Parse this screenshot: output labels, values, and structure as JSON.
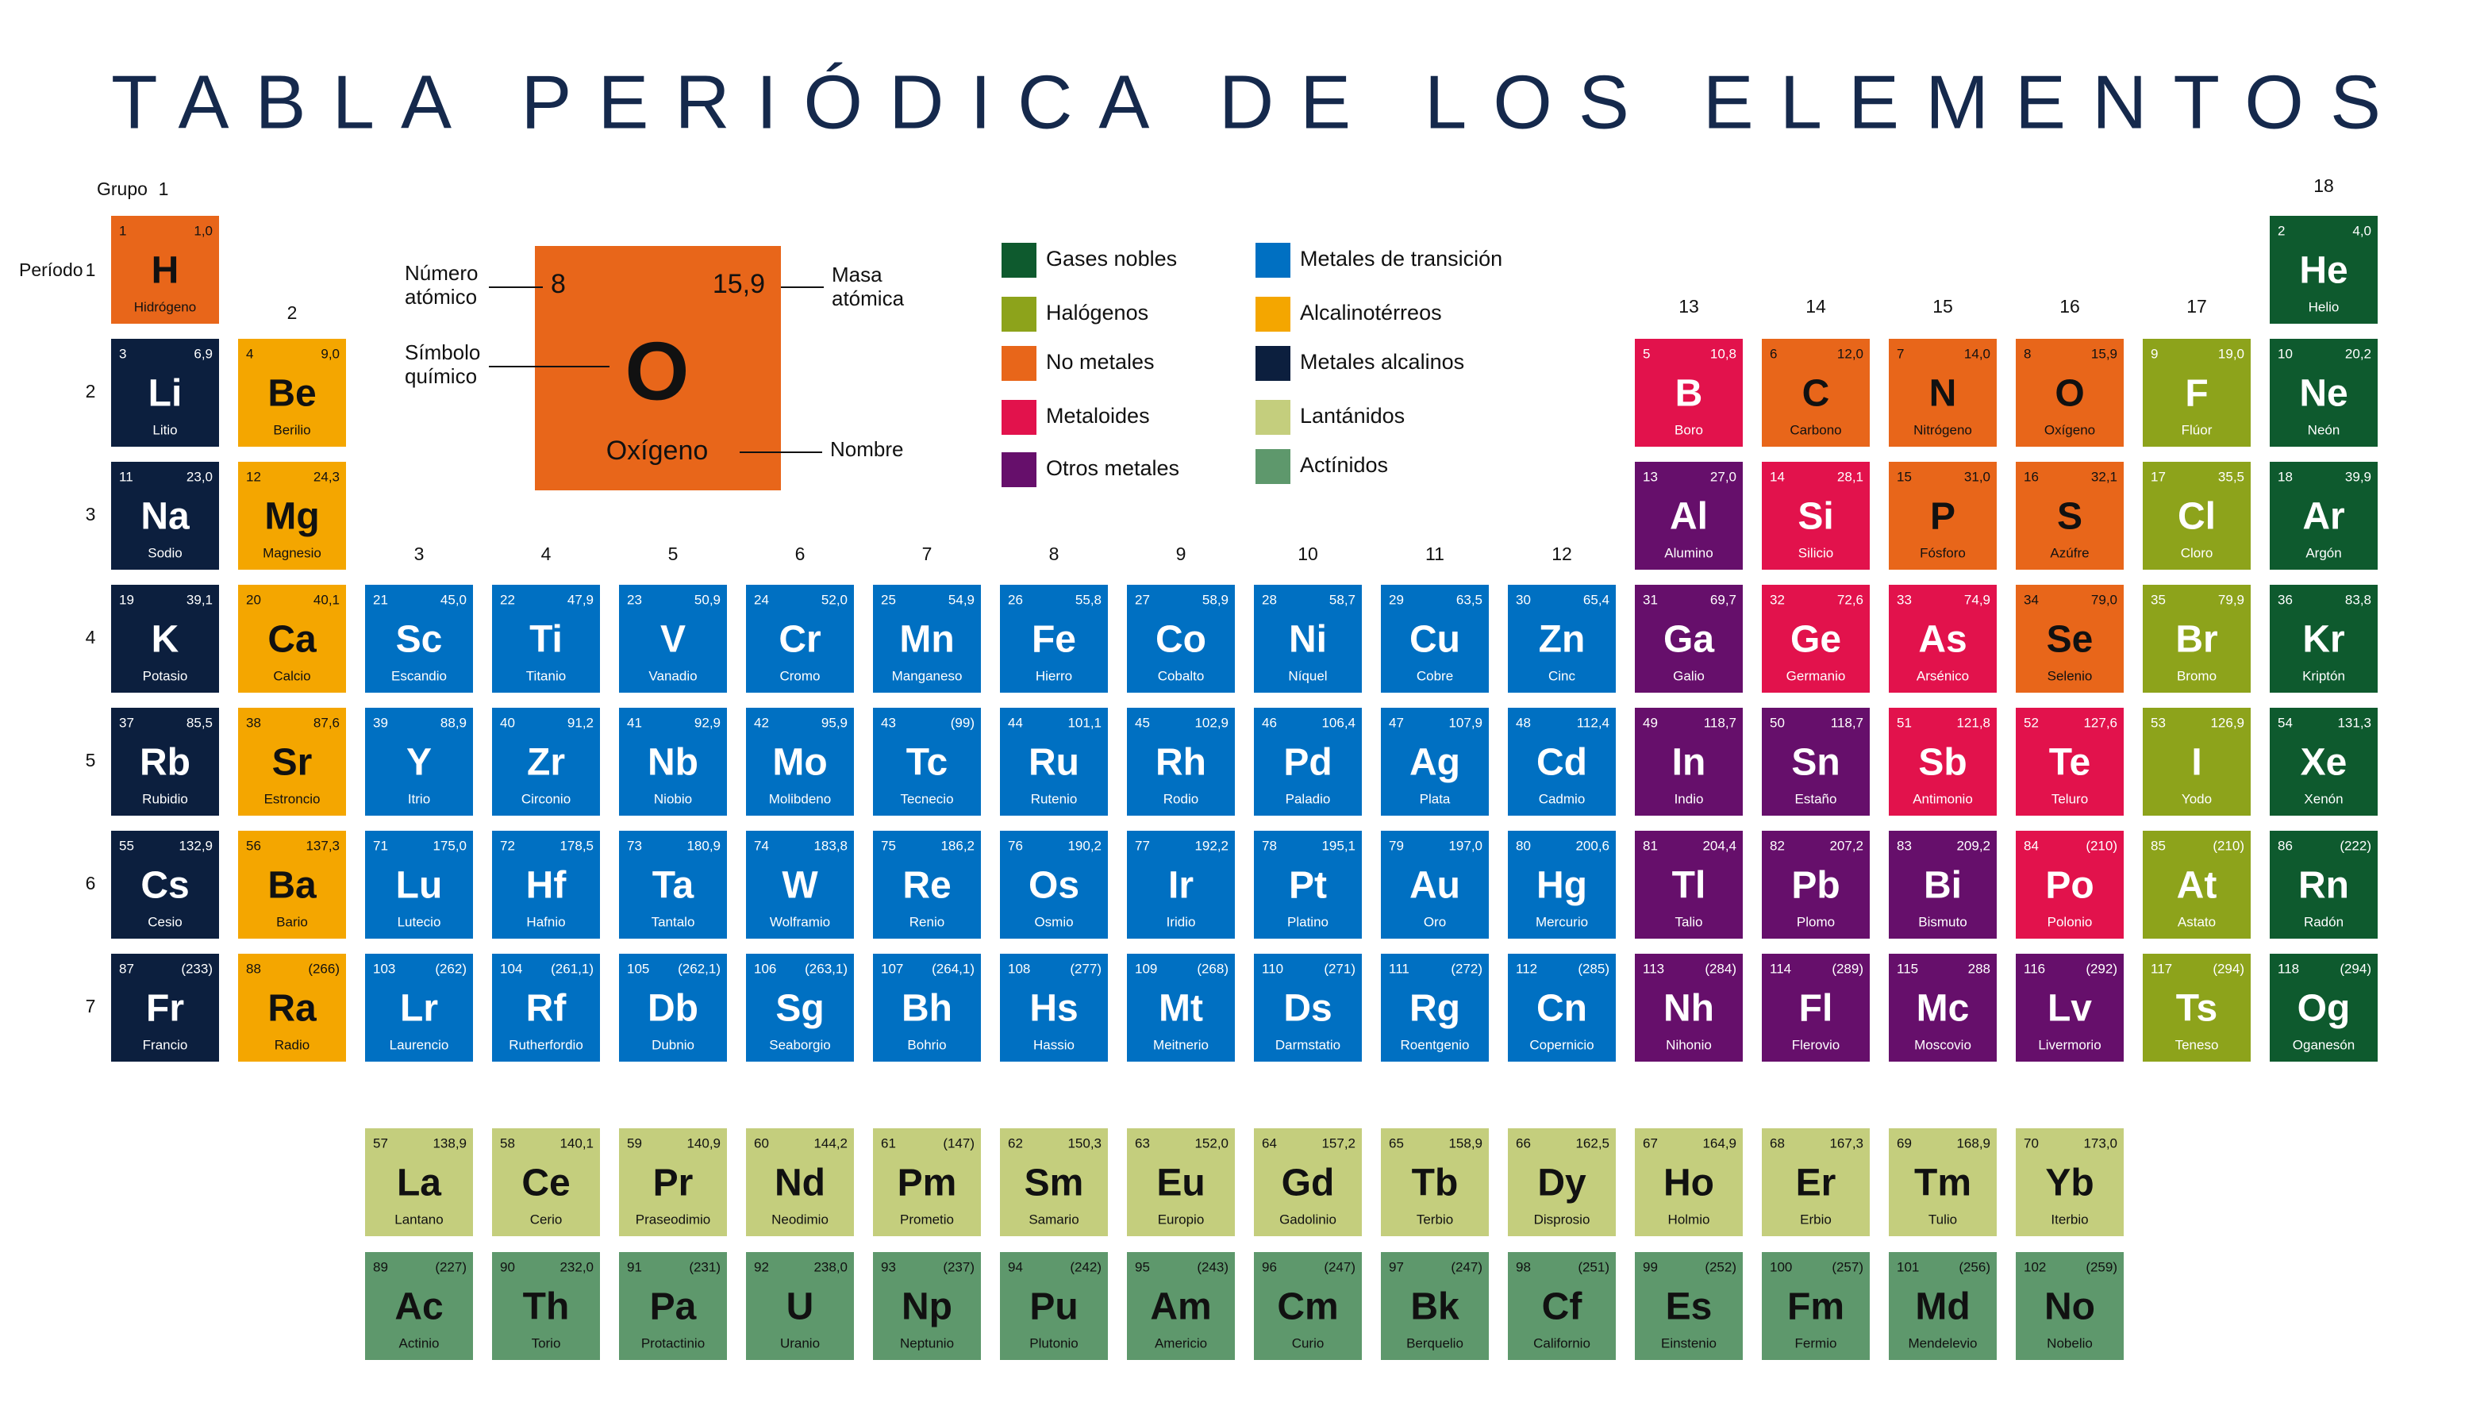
{
  "title": "TABLA PERIÓDICA DE LOS ELEMENTOS",
  "group_label": "Grupo",
  "period_label": "Período",
  "groups": [
    1,
    2,
    3,
    4,
    5,
    6,
    7,
    8,
    9,
    10,
    11,
    12,
    13,
    14,
    15,
    16,
    17,
    18
  ],
  "periods": [
    1,
    2,
    3,
    4,
    5,
    6,
    7
  ],
  "key": {
    "number_label": [
      "Número",
      "atómico"
    ],
    "symbol_label": [
      "Símbolo",
      "químico"
    ],
    "mass_label": [
      "Masa",
      "atómica"
    ],
    "name_label": "Nombre"
  },
  "legend": [
    {
      "name": "Gases nobles",
      "color": "#0e5a2e"
    },
    {
      "name": "Halógenos",
      "color": "#8da31b"
    },
    {
      "name": "No metales",
      "color": "#e8661a"
    },
    {
      "name": "Metaloides",
      "color": "#e2124c"
    },
    {
      "name": "Otros metales",
      "color": "#660f6b"
    },
    {
      "name": "Metales de transición",
      "color": "#0070c2"
    },
    {
      "name": "Alcalinotérreos",
      "color": "#f4a600"
    },
    {
      "name": "Metales alcalinos",
      "color": "#0c1f3e"
    },
    {
      "name": "Lantánidos",
      "color": "#c4ce7d"
    },
    {
      "name": "Actínidos",
      "color": "#5e986c"
    }
  ],
  "elements": [
    {
      "n": 1,
      "symbol": "H",
      "name": "Hidrógeno",
      "mass": "1,0",
      "cat": 2
    },
    {
      "n": 2,
      "symbol": "He",
      "name": "Helio",
      "mass": "4,0",
      "cat": 0
    },
    {
      "n": 3,
      "symbol": "Li",
      "name": "Litio",
      "mass": "6,9",
      "cat": 7
    },
    {
      "n": 4,
      "symbol": "Be",
      "name": "Berilio",
      "mass": "9,0",
      "cat": 6
    },
    {
      "n": 5,
      "symbol": "B",
      "name": "Boro",
      "mass": "10,8",
      "cat": 3
    },
    {
      "n": 6,
      "symbol": "C",
      "name": "Carbono",
      "mass": "12,0",
      "cat": 2
    },
    {
      "n": 7,
      "symbol": "N",
      "name": "Nitrógeno",
      "mass": "14,0",
      "cat": 2
    },
    {
      "n": 8,
      "symbol": "O",
      "name": "Oxígeno",
      "mass": "15,9",
      "cat": 2
    },
    {
      "n": 9,
      "symbol": "F",
      "name": "Flúor",
      "mass": "19,0",
      "cat": 1
    },
    {
      "n": 10,
      "symbol": "Ne",
      "name": "Neón",
      "mass": "20,2",
      "cat": 0
    },
    {
      "n": 11,
      "symbol": "Na",
      "name": "Sodio",
      "mass": "23,0",
      "cat": 7
    },
    {
      "n": 12,
      "symbol": "Mg",
      "name": "Magnesio",
      "mass": "24,3",
      "cat": 6
    },
    {
      "n": 13,
      "symbol": "Al",
      "name": "Alumino",
      "mass": "27,0",
      "cat": 4
    },
    {
      "n": 14,
      "symbol": "Si",
      "name": "Silicio",
      "mass": "28,1",
      "cat": 3
    },
    {
      "n": 15,
      "symbol": "P",
      "name": "Fósforo",
      "mass": "31,0",
      "cat": 2
    },
    {
      "n": 16,
      "symbol": "S",
      "name": "Azúfre",
      "mass": "32,1",
      "cat": 2
    },
    {
      "n": 17,
      "symbol": "Cl",
      "name": "Cloro",
      "mass": "35,5",
      "cat": 1
    },
    {
      "n": 18,
      "symbol": "Ar",
      "name": "Argón",
      "mass": "39,9",
      "cat": 0
    },
    {
      "n": 19,
      "symbol": "K",
      "name": "Potasio",
      "mass": "39,1",
      "cat": 7
    },
    {
      "n": 20,
      "symbol": "Ca",
      "name": "Calcio",
      "mass": "40,1",
      "cat": 6
    },
    {
      "n": 21,
      "symbol": "Sc",
      "name": "Escandio",
      "mass": "45,0",
      "cat": 5
    },
    {
      "n": 22,
      "symbol": "Ti",
      "name": "Titanio",
      "mass": "47,9",
      "cat": 5
    },
    {
      "n": 23,
      "symbol": "V",
      "name": "Vanadio",
      "mass": "50,9",
      "cat": 5
    },
    {
      "n": 24,
      "symbol": "Cr",
      "name": "Cromo",
      "mass": "52,0",
      "cat": 5
    },
    {
      "n": 25,
      "symbol": "Mn",
      "name": "Manganeso",
      "mass": "54,9",
      "cat": 5
    },
    {
      "n": 26,
      "symbol": "Fe",
      "name": "Hierro",
      "mass": "55,8",
      "cat": 5
    },
    {
      "n": 27,
      "symbol": "Co",
      "name": "Cobalto",
      "mass": "58,9",
      "cat": 5
    },
    {
      "n": 28,
      "symbol": "Ni",
      "name": "Níquel",
      "mass": "58,7",
      "cat": 5
    },
    {
      "n": 29,
      "symbol": "Cu",
      "name": "Cobre",
      "mass": "63,5",
      "cat": 5
    },
    {
      "n": 30,
      "symbol": "Zn",
      "name": "Cinc",
      "mass": "65,4",
      "cat": 5
    },
    {
      "n": 31,
      "symbol": "Ga",
      "name": "Galio",
      "mass": "69,7",
      "cat": 4
    },
    {
      "n": 32,
      "symbol": "Ge",
      "name": "Germanio",
      "mass": "72,6",
      "cat": 3
    },
    {
      "n": 33,
      "symbol": "As",
      "name": "Arsénico",
      "mass": "74,9",
      "cat": 3
    },
    {
      "n": 34,
      "symbol": "Se",
      "name": "Selenio",
      "mass": "79,0",
      "cat": 2
    },
    {
      "n": 35,
      "symbol": "Br",
      "name": "Bromo",
      "mass": "79,9",
      "cat": 1
    },
    {
      "n": 36,
      "symbol": "Kr",
      "name": "Kriptón",
      "mass": "83,8",
      "cat": 0
    },
    {
      "n": 37,
      "symbol": "Rb",
      "name": "Rubidio",
      "mass": "85,5",
      "cat": 7
    },
    {
      "n": 38,
      "symbol": "Sr",
      "name": "Estroncio",
      "mass": "87,6",
      "cat": 6
    },
    {
      "n": 39,
      "symbol": "Y",
      "name": "Itrio",
      "mass": "88,9",
      "cat": 5
    },
    {
      "n": 40,
      "symbol": "Zr",
      "name": "Circonio",
      "mass": "91,2",
      "cat": 5
    },
    {
      "n": 41,
      "symbol": "Nb",
      "name": "Niobio",
      "mass": "92,9",
      "cat": 5
    },
    {
      "n": 42,
      "symbol": "Mo",
      "name": "Molibdeno",
      "mass": "95,9",
      "cat": 5
    },
    {
      "n": 43,
      "symbol": "Tc",
      "name": "Tecnecio",
      "mass": "(99)",
      "cat": 5
    },
    {
      "n": 44,
      "symbol": "Ru",
      "name": "Rutenio",
      "mass": "101,1",
      "cat": 5
    },
    {
      "n": 45,
      "symbol": "Rh",
      "name": "Rodio",
      "mass": "102,9",
      "cat": 5
    },
    {
      "n": 46,
      "symbol": "Pd",
      "name": "Paladio",
      "mass": "106,4",
      "cat": 5
    },
    {
      "n": 47,
      "symbol": "Ag",
      "name": "Plata",
      "mass": "107,9",
      "cat": 5
    },
    {
      "n": 48,
      "symbol": "Cd",
      "name": "Cadmio",
      "mass": "112,4",
      "cat": 5
    },
    {
      "n": 49,
      "symbol": "In",
      "name": "Indio",
      "mass": "118,7",
      "cat": 4
    },
    {
      "n": 50,
      "symbol": "Sn",
      "name": "Estaño",
      "mass": "118,7",
      "cat": 4
    },
    {
      "n": 51,
      "symbol": "Sb",
      "name": "Antimonio",
      "mass": "121,8",
      "cat": 3
    },
    {
      "n": 52,
      "symbol": "Te",
      "name": "Teluro",
      "mass": "127,6",
      "cat": 3
    },
    {
      "n": 53,
      "symbol": "I",
      "name": "Yodo",
      "mass": "126,9",
      "cat": 1
    },
    {
      "n": 54,
      "symbol": "Xe",
      "name": "Xenón",
      "mass": "131,3",
      "cat": 0
    },
    {
      "n": 55,
      "symbol": "Cs",
      "name": "Cesio",
      "mass": "132,9",
      "cat": 7
    },
    {
      "n": 56,
      "symbol": "Ba",
      "name": "Bario",
      "mass": "137,3",
      "cat": 6
    },
    {
      "n": 57,
      "symbol": "La",
      "name": "Lantano",
      "mass": "138,9",
      "cat": 8
    },
    {
      "n": 58,
      "symbol": "Ce",
      "name": "Cerio",
      "mass": "140,1",
      "cat": 8
    },
    {
      "n": 59,
      "symbol": "Pr",
      "name": "Praseodimio",
      "mass": "140,9",
      "cat": 8
    },
    {
      "n": 60,
      "symbol": "Nd",
      "name": "Neodimio",
      "mass": "144,2",
      "cat": 8
    },
    {
      "n": 61,
      "symbol": "Pm",
      "name": "Prometio",
      "mass": "(147)",
      "cat": 8
    },
    {
      "n": 62,
      "symbol": "Sm",
      "name": "Samario",
      "mass": "150,3",
      "cat": 8
    },
    {
      "n": 63,
      "symbol": "Eu",
      "name": "Europio",
      "mass": "152,0",
      "cat": 8
    },
    {
      "n": 64,
      "symbol": "Gd",
      "name": "Gadolinio",
      "mass": "157,2",
      "cat": 8
    },
    {
      "n": 65,
      "symbol": "Tb",
      "name": "Terbio",
      "mass": "158,9",
      "cat": 8
    },
    {
      "n": 66,
      "symbol": "Dy",
      "name": "Disprosio",
      "mass": "162,5",
      "cat": 8
    },
    {
      "n": 67,
      "symbol": "Ho",
      "name": "Holmio",
      "mass": "164,9",
      "cat": 8
    },
    {
      "n": 68,
      "symbol": "Er",
      "name": "Erbio",
      "mass": "167,3",
      "cat": 8
    },
    {
      "n": 69,
      "symbol": "Tm",
      "name": "Tulio",
      "mass": "168,9",
      "cat": 8
    },
    {
      "n": 70,
      "symbol": "Yb",
      "name": "Iterbio",
      "mass": "173,0",
      "cat": 8
    },
    {
      "n": 71,
      "symbol": "Lu",
      "name": "Lutecio",
      "mass": "175,0",
      "cat": 5
    },
    {
      "n": 72,
      "symbol": "Hf",
      "name": "Hafnio",
      "mass": "178,5",
      "cat": 5
    },
    {
      "n": 73,
      "symbol": "Ta",
      "name": "Tantalo",
      "mass": "180,9",
      "cat": 5
    },
    {
      "n": 74,
      "symbol": "W",
      "name": "Wolframio",
      "mass": "183,8",
      "cat": 5
    },
    {
      "n": 75,
      "symbol": "Re",
      "name": "Renio",
      "mass": "186,2",
      "cat": 5
    },
    {
      "n": 76,
      "symbol": "Os",
      "name": "Osmio",
      "mass": "190,2",
      "cat": 5
    },
    {
      "n": 77,
      "symbol": "Ir",
      "name": "Iridio",
      "mass": "192,2",
      "cat": 5
    },
    {
      "n": 78,
      "symbol": "Pt",
      "name": "Platino",
      "mass": "195,1",
      "cat": 5
    },
    {
      "n": 79,
      "symbol": "Au",
      "name": "Oro",
      "mass": "197,0",
      "cat": 5
    },
    {
      "n": 80,
      "symbol": "Hg",
      "name": "Mercurio",
      "mass": "200,6",
      "cat": 5
    },
    {
      "n": 81,
      "symbol": "Tl",
      "name": "Talio",
      "mass": "204,4",
      "cat": 4
    },
    {
      "n": 82,
      "symbol": "Pb",
      "name": "Plomo",
      "mass": "207,2",
      "cat": 4
    },
    {
      "n": 83,
      "symbol": "Bi",
      "name": "Bismuto",
      "mass": "209,2",
      "cat": 4
    },
    {
      "n": 84,
      "symbol": "Po",
      "name": "Polonio",
      "mass": "(210)",
      "cat": 3
    },
    {
      "n": 85,
      "symbol": "At",
      "name": "Astato",
      "mass": "(210)",
      "cat": 1
    },
    {
      "n": 86,
      "symbol": "Rn",
      "name": "Radón",
      "mass": "(222)",
      "cat": 0
    },
    {
      "n": 87,
      "symbol": "Fr",
      "name": "Francio",
      "mass": "(233)",
      "cat": 7
    },
    {
      "n": 88,
      "symbol": "Ra",
      "name": "Radio",
      "mass": "(266)",
      "cat": 6
    },
    {
      "n": 89,
      "symbol": "Ac",
      "name": "Actinio",
      "mass": "(227)",
      "cat": 9
    },
    {
      "n": 90,
      "symbol": "Th",
      "name": "Torio",
      "mass": "232,0",
      "cat": 9
    },
    {
      "n": 91,
      "symbol": "Pa",
      "name": "Protactinio",
      "mass": "(231)",
      "cat": 9
    },
    {
      "n": 92,
      "symbol": "U",
      "name": "Uranio",
      "mass": "238,0",
      "cat": 9
    },
    {
      "n": 93,
      "symbol": "Np",
      "name": "Neptunio",
      "mass": "(237)",
      "cat": 9
    },
    {
      "n": 94,
      "symbol": "Pu",
      "name": "Plutonio",
      "mass": "(242)",
      "cat": 9
    },
    {
      "n": 95,
      "symbol": "Am",
      "name": "Americio",
      "mass": "(243)",
      "cat": 9
    },
    {
      "n": 96,
      "symbol": "Cm",
      "name": "Curio",
      "mass": "(247)",
      "cat": 9
    },
    {
      "n": 97,
      "symbol": "Bk",
      "name": "Berquelio",
      "mass": "(247)",
      "cat": 9
    },
    {
      "n": 98,
      "symbol": "Cf",
      "name": "Californio",
      "mass": "(251)",
      "cat": 9
    },
    {
      "n": 99,
      "symbol": "Es",
      "name": "Einstenio",
      "mass": "(252)",
      "cat": 9
    },
    {
      "n": 100,
      "symbol": "Fm",
      "name": "Fermio",
      "mass": "(257)",
      "cat": 9
    },
    {
      "n": 101,
      "symbol": "Md",
      "name": "Mendelevio",
      "mass": "(256)",
      "cat": 9
    },
    {
      "n": 102,
      "symbol": "No",
      "name": "Nobelio",
      "mass": "(259)",
      "cat": 9
    },
    {
      "n": 103,
      "symbol": "Lr",
      "name": "Laurencio",
      "mass": "(262)",
      "cat": 5
    },
    {
      "n": 104,
      "symbol": "Rf",
      "name": "Rutherfordio",
      "mass": "(261,1)",
      "cat": 5
    },
    {
      "n": 105,
      "symbol": "Db",
      "name": "Dubnio",
      "mass": "(262,1)",
      "cat": 5
    },
    {
      "n": 106,
      "symbol": "Sg",
      "name": "Seaborgio",
      "mass": "(263,1)",
      "cat": 5
    },
    {
      "n": 107,
      "symbol": "Bh",
      "name": "Bohrio",
      "mass": "(264,1)",
      "cat": 5
    },
    {
      "n": 108,
      "symbol": "Hs",
      "name": "Hassio",
      "mass": "(277)",
      "cat": 5
    },
    {
      "n": 109,
      "symbol": "Mt",
      "name": "Meitnerio",
      "mass": "(268)",
      "cat": 5
    },
    {
      "n": 110,
      "symbol": "Ds",
      "name": "Darmstatio",
      "mass": "(271)",
      "cat": 5
    },
    {
      "n": 111,
      "symbol": "Rg",
      "name": "Roentgenio",
      "mass": "(272)",
      "cat": 5
    },
    {
      "n": 112,
      "symbol": "Cn",
      "name": "Copernicio",
      "mass": "(285)",
      "cat": 5
    },
    {
      "n": 113,
      "symbol": "Nh",
      "name": "Nihonio",
      "mass": "(284)",
      "cat": 4
    },
    {
      "n": 114,
      "symbol": "Fl",
      "name": "Flerovio",
      "mass": "(289)",
      "cat": 4
    },
    {
      "n": 115,
      "symbol": "Mc",
      "name": "Moscovio",
      "mass": "288",
      "cat": 4
    },
    {
      "n": 116,
      "symbol": "Lv",
      "name": "Livermorio",
      "mass": "(292)",
      "cat": 4
    },
    {
      "n": 117,
      "symbol": "Ts",
      "name": "Teneso",
      "mass": "(294)",
      "cat": 1
    },
    {
      "n": 118,
      "symbol": "Og",
      "name": "Oganesón",
      "mass": "(294)",
      "cat": 0
    }
  ]
}
